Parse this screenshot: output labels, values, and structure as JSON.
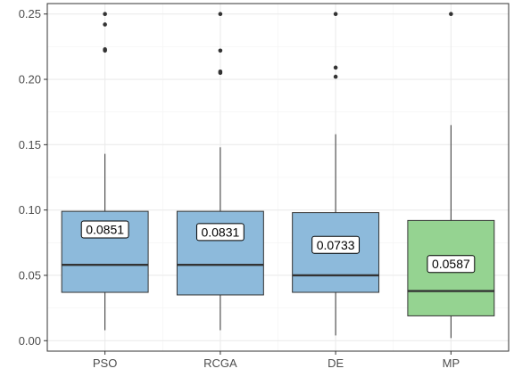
{
  "chart_data": {
    "type": "boxplot",
    "title": "",
    "xlabel": "",
    "ylabel": "",
    "ylim": [
      -0.008,
      0.258
    ],
    "y_ticks": [
      0.0,
      0.05,
      0.1,
      0.15,
      0.2,
      0.25
    ],
    "y_tick_labels": [
      "0.00",
      "0.05",
      "0.10",
      "0.15",
      "0.20",
      "0.25"
    ],
    "grid": true,
    "legend": "none",
    "categories": [
      "PSO",
      "RCGA",
      "DE",
      "MP"
    ],
    "boxes": [
      {
        "name": "PSO",
        "whisker_low": 0.008,
        "q1": 0.037,
        "median": 0.058,
        "q3": 0.099,
        "whisker_high": 0.143,
        "outliers": [
          0.222,
          0.223,
          0.242,
          0.25
        ],
        "mean_label": "0.0851",
        "mean": 0.0851,
        "color": "#8dbadb"
      },
      {
        "name": "RCGA",
        "whisker_low": 0.008,
        "q1": 0.035,
        "median": 0.058,
        "q3": 0.099,
        "whisker_high": 0.148,
        "outliers": [
          0.205,
          0.206,
          0.222,
          0.25
        ],
        "mean_label": "0.0831",
        "mean": 0.0831,
        "color": "#8dbadb"
      },
      {
        "name": "DE",
        "whisker_low": 0.004,
        "q1": 0.037,
        "median": 0.05,
        "q3": 0.098,
        "whisker_high": 0.158,
        "outliers": [
          0.202,
          0.209,
          0.25
        ],
        "mean_label": "0.0733",
        "mean": 0.0733,
        "color": "#8dbadb"
      },
      {
        "name": "MP",
        "whisker_low": 0.002,
        "q1": 0.019,
        "median": 0.038,
        "q3": 0.092,
        "whisker_high": 0.165,
        "outliers": [
          0.25
        ],
        "mean_label": "0.0587",
        "mean": 0.0587,
        "color": "#95d391"
      }
    ]
  }
}
